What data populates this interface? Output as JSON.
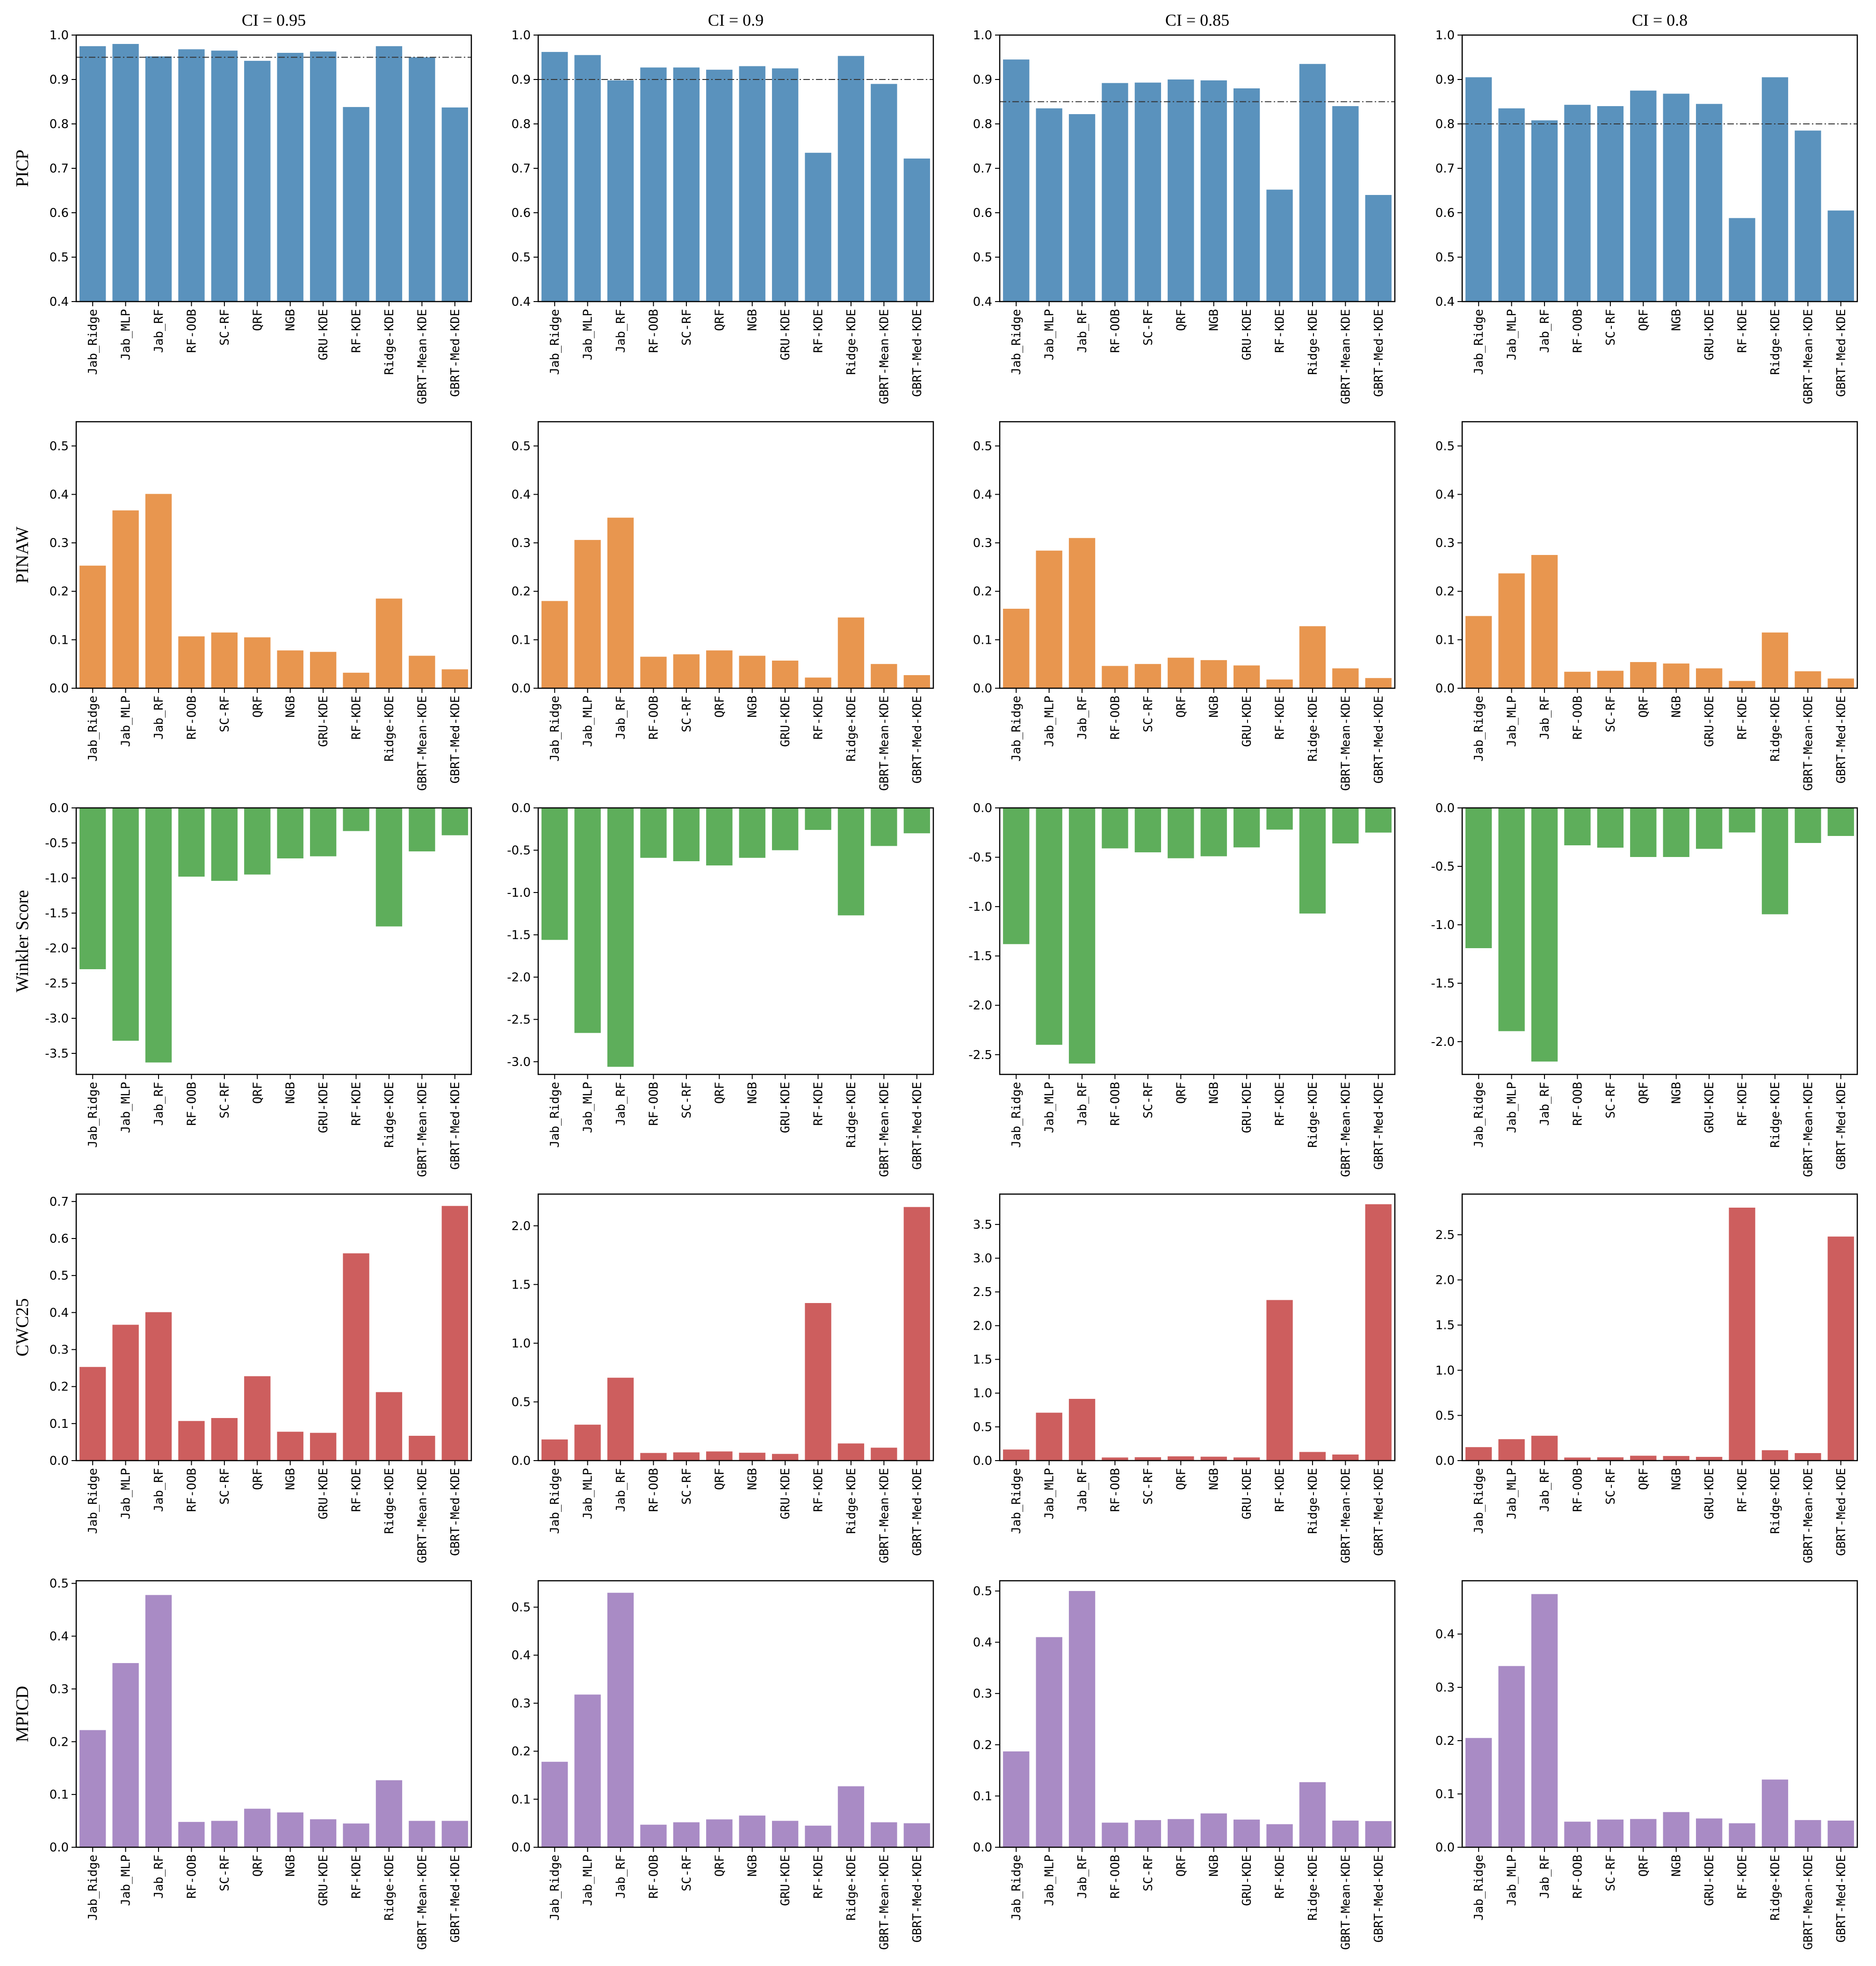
{
  "chart_data": {
    "type": "bar",
    "layout": "grid 5 rows x 4 columns",
    "categories": [
      "Jab_Ridge",
      "Jab_MLP",
      "Jab_RF",
      "RF-OOB",
      "SC-RF",
      "QRF",
      "NGB",
      "GRU-KDE",
      "RF-KDE",
      "Ridge-KDE",
      "GBRT-Mean-KDE",
      "GBRT-Med-KDE"
    ],
    "columns": [
      {
        "title": "CI = 0.95",
        "ci": 0.95
      },
      {
        "title": "CI = 0.9",
        "ci": 0.9
      },
      {
        "title": "CI = 0.85",
        "ci": 0.85
      },
      {
        "title": "CI = 0.8",
        "ci": 0.8
      }
    ],
    "rows": [
      {
        "metric": "PICP",
        "color": "#5a92bd",
        "reference_line": true,
        "panels": [
          {
            "ylim": [
              0.4,
              1.0
            ],
            "ticks": [
              "0.4",
              "0.5",
              "0.6",
              "0.7",
              "0.8",
              "0.9",
              "1.0"
            ],
            "tick_values": [
              0.4,
              0.5,
              0.6,
              0.7,
              0.8,
              0.9,
              1.0
            ],
            "values": [
              0.975,
              0.98,
              0.952,
              0.968,
              0.965,
              0.942,
              0.96,
              0.963,
              0.838,
              0.975,
              0.95,
              0.837
            ]
          },
          {
            "ylim": [
              0.4,
              1.0
            ],
            "ticks": [
              "0.4",
              "0.5",
              "0.6",
              "0.7",
              "0.8",
              "0.9",
              "1.0"
            ],
            "tick_values": [
              0.4,
              0.5,
              0.6,
              0.7,
              0.8,
              0.9,
              1.0
            ],
            "values": [
              0.962,
              0.955,
              0.898,
              0.927,
              0.927,
              0.922,
              0.93,
              0.925,
              0.735,
              0.953,
              0.89,
              0.722
            ]
          },
          {
            "ylim": [
              0.4,
              1.0
            ],
            "ticks": [
              "0.4",
              "0.5",
              "0.6",
              "0.7",
              "0.8",
              "0.9",
              "1.0"
            ],
            "tick_values": [
              0.4,
              0.5,
              0.6,
              0.7,
              0.8,
              0.9,
              1.0
            ],
            "values": [
              0.945,
              0.835,
              0.822,
              0.892,
              0.893,
              0.9,
              0.898,
              0.88,
              0.652,
              0.935,
              0.84,
              0.64
            ]
          },
          {
            "ylim": [
              0.4,
              1.0
            ],
            "ticks": [
              "0.4",
              "0.5",
              "0.6",
              "0.7",
              "0.8",
              "0.9",
              "1.0"
            ],
            "tick_values": [
              0.4,
              0.5,
              0.6,
              0.7,
              0.8,
              0.9,
              1.0
            ],
            "values": [
              0.905,
              0.835,
              0.808,
              0.843,
              0.84,
              0.875,
              0.868,
              0.845,
              0.588,
              0.905,
              0.785,
              0.605
            ]
          }
        ]
      },
      {
        "metric": "PINAW",
        "color": "#e8964f",
        "reference_line": false,
        "panels": [
          {
            "ylim": [
              0,
              0.55
            ],
            "ticks": [
              "0.0",
              "0.1",
              "0.2",
              "0.3",
              "0.4",
              "0.5"
            ],
            "tick_values": [
              0,
              0.1,
              0.2,
              0.3,
              0.4,
              0.5
            ],
            "values": [
              0.253,
              0.367,
              0.401,
              0.107,
              0.115,
              0.105,
              0.078,
              0.075,
              0.032,
              0.185,
              0.067,
              0.039
            ]
          },
          {
            "ylim": [
              0,
              0.55
            ],
            "ticks": [
              "0.0",
              "0.1",
              "0.2",
              "0.3",
              "0.4",
              "0.5"
            ],
            "tick_values": [
              0,
              0.1,
              0.2,
              0.3,
              0.4,
              0.5
            ],
            "values": [
              0.18,
              0.306,
              0.352,
              0.065,
              0.07,
              0.078,
              0.067,
              0.057,
              0.022,
              0.146,
              0.05,
              0.027
            ]
          },
          {
            "ylim": [
              0,
              0.55
            ],
            "ticks": [
              "0.0",
              "0.1",
              "0.2",
              "0.3",
              "0.4",
              "0.5"
            ],
            "tick_values": [
              0,
              0.1,
              0.2,
              0.3,
              0.4,
              0.5
            ],
            "values": [
              0.164,
              0.284,
              0.31,
              0.046,
              0.05,
              0.063,
              0.058,
              0.047,
              0.018,
              0.128,
              0.041,
              0.021
            ]
          },
          {
            "ylim": [
              0,
              0.55
            ],
            "ticks": [
              "0.0",
              "0.1",
              "0.2",
              "0.3",
              "0.4",
              "0.5"
            ],
            "tick_values": [
              0,
              0.1,
              0.2,
              0.3,
              0.4,
              0.5
            ],
            "values": [
              0.149,
              0.237,
              0.275,
              0.034,
              0.036,
              0.054,
              0.051,
              0.041,
              0.015,
              0.115,
              0.035,
              0.02
            ]
          }
        ]
      },
      {
        "metric": "Winkler Score",
        "color": "#5eae5b",
        "reference_line": false,
        "panels": [
          {
            "ylim": [
              -3.8,
              0
            ],
            "ticks": [
              "0.0",
              "-0.5",
              "-1.0",
              "-1.5",
              "-2.0",
              "-2.5",
              "-3.0",
              "-3.5"
            ],
            "tick_values": [
              0,
              -0.5,
              -1.0,
              -1.5,
              -2.0,
              -2.5,
              -3.0,
              -3.5
            ],
            "values": [
              -2.3,
              -3.32,
              -3.63,
              -0.98,
              -1.04,
              -0.95,
              -0.72,
              -0.69,
              -0.33,
              -1.69,
              -0.62,
              -0.39
            ]
          },
          {
            "ylim": [
              -3.15,
              0
            ],
            "ticks": [
              "0.0",
              "-0.5",
              "-1.0",
              "-1.5",
              "-2.0",
              "-2.5",
              "-3.0"
            ],
            "tick_values": [
              0,
              -0.5,
              -1.0,
              -1.5,
              -2.0,
              -2.5,
              -3.0
            ],
            "values": [
              -1.56,
              -2.66,
              -3.06,
              -0.59,
              -0.63,
              -0.68,
              -0.59,
              -0.5,
              -0.26,
              -1.27,
              -0.45,
              -0.3
            ]
          },
          {
            "ylim": [
              -2.7,
              0
            ],
            "ticks": [
              "0.0",
              "-0.5",
              "-1.0",
              "-1.5",
              "-2.0",
              "-2.5"
            ],
            "tick_values": [
              0,
              -0.5,
              -1.0,
              -1.5,
              -2.0,
              -2.5
            ],
            "values": [
              -1.38,
              -2.4,
              -2.59,
              -0.41,
              -0.45,
              -0.51,
              -0.49,
              -0.4,
              -0.22,
              -1.07,
              -0.36,
              -0.25
            ]
          },
          {
            "ylim": [
              -2.28,
              0
            ],
            "ticks": [
              "0.0",
              "-0.5",
              "-1.0",
              "-1.5",
              "-2.0"
            ],
            "tick_values": [
              0,
              -0.5,
              -1.0,
              -1.5,
              -2.0
            ],
            "values": [
              -1.2,
              -1.91,
              -2.17,
              -0.32,
              -0.34,
              -0.42,
              -0.42,
              -0.35,
              -0.21,
              -0.91,
              -0.3,
              -0.24
            ]
          }
        ]
      },
      {
        "metric": "CWC25",
        "color": "#cd5e5e",
        "reference_line": false,
        "panels": [
          {
            "ylim": [
              0,
              0.72
            ],
            "ticks": [
              "0.0",
              "0.1",
              "0.2",
              "0.3",
              "0.4",
              "0.5",
              "0.6",
              "0.7"
            ],
            "tick_values": [
              0,
              0.1,
              0.2,
              0.3,
              0.4,
              0.5,
              0.6,
              0.7
            ],
            "values": [
              0.253,
              0.367,
              0.401,
              0.107,
              0.115,
              0.228,
              0.078,
              0.075,
              0.56,
              0.185,
              0.067,
              0.688
            ]
          },
          {
            "ylim": [
              0,
              2.27
            ],
            "ticks": [
              "0.0",
              "0.5",
              "1.0",
              "1.5",
              "2.0"
            ],
            "tick_values": [
              0,
              0.5,
              1.0,
              1.5,
              2.0
            ],
            "values": [
              0.18,
              0.306,
              0.706,
              0.065,
              0.07,
              0.078,
              0.067,
              0.057,
              1.342,
              0.146,
              0.11,
              2.16
            ]
          },
          {
            "ylim": [
              0,
              3.95
            ],
            "ticks": [
              "0.0",
              "0.5",
              "1.0",
              "1.5",
              "2.0",
              "2.5",
              "3.0",
              "3.5"
            ],
            "tick_values": [
              0,
              0.5,
              1.0,
              1.5,
              2.0,
              2.5,
              3.0,
              3.5
            ],
            "values": [
              0.164,
              0.71,
              0.915,
              0.046,
              0.05,
              0.063,
              0.058,
              0.047,
              2.38,
              0.128,
              0.09,
              3.8
            ]
          },
          {
            "ylim": [
              0,
              2.95
            ],
            "ticks": [
              "0.0",
              "0.5",
              "1.0",
              "1.5",
              "2.0",
              "2.5"
            ],
            "tick_values": [
              0,
              0.5,
              1.0,
              1.5,
              2.0,
              2.5
            ],
            "values": [
              0.149,
              0.237,
              0.275,
              0.034,
              0.036,
              0.054,
              0.051,
              0.041,
              2.8,
              0.115,
              0.083,
              2.48
            ]
          }
        ]
      },
      {
        "metric": "MPICD",
        "color": "#a98bc5",
        "reference_line": false,
        "panels": [
          {
            "ylim": [
              0,
              0.505
            ],
            "ticks": [
              "0.0",
              "0.1",
              "0.2",
              "0.3",
              "0.4",
              "0.5"
            ],
            "tick_values": [
              0,
              0.1,
              0.2,
              0.3,
              0.4,
              0.5
            ],
            "values": [
              0.222,
              0.349,
              0.478,
              0.048,
              0.05,
              0.073,
              0.066,
              0.053,
              0.045,
              0.127,
              0.05,
              0.05
            ]
          },
          {
            "ylim": [
              0,
              0.555
            ],
            "ticks": [
              "0.0",
              "0.1",
              "0.2",
              "0.3",
              "0.4",
              "0.5"
            ],
            "tick_values": [
              0,
              0.1,
              0.2,
              0.3,
              0.4,
              0.5
            ],
            "values": [
              0.178,
              0.318,
              0.53,
              0.047,
              0.052,
              0.058,
              0.066,
              0.055,
              0.045,
              0.127,
              0.052,
              0.05
            ]
          },
          {
            "ylim": [
              0,
              0.52
            ],
            "ticks": [
              "0.0",
              "0.1",
              "0.2",
              "0.3",
              "0.4",
              "0.5"
            ],
            "tick_values": [
              0,
              0.1,
              0.2,
              0.3,
              0.4,
              0.5
            ],
            "values": [
              0.187,
              0.41,
              0.5,
              0.048,
              0.053,
              0.055,
              0.066,
              0.054,
              0.045,
              0.127,
              0.052,
              0.051
            ]
          },
          {
            "ylim": [
              0,
              0.5
            ],
            "ticks": [
              "0.0",
              "0.1",
              "0.2",
              "0.3",
              "0.4"
            ],
            "tick_values": [
              0,
              0.1,
              0.2,
              0.3,
              0.4
            ],
            "values": [
              0.205,
              0.34,
              0.475,
              0.048,
              0.052,
              0.053,
              0.066,
              0.054,
              0.045,
              0.127,
              0.051,
              0.05
            ]
          }
        ]
      }
    ]
  }
}
